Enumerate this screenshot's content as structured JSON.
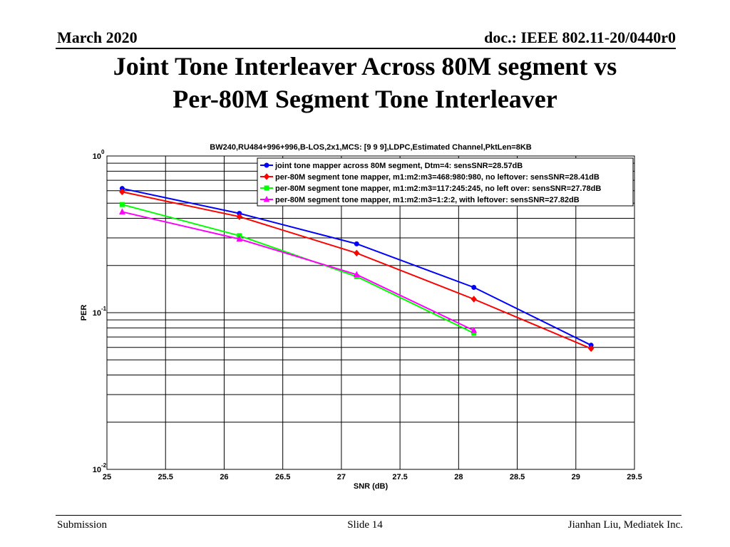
{
  "header": {
    "date": "March 2020",
    "doc_id": "doc.: IEEE 802.11-20/0440r0"
  },
  "title": {
    "line1": "Joint Tone Interleaver Across 80M segment vs",
    "line2": "Per-80M Segment Tone Interleaver"
  },
  "footer": {
    "left": "Submission",
    "center": "Slide 14",
    "right": "Jianhan Liu, Mediatek Inc."
  },
  "chart_data": {
    "type": "line",
    "title": "BW240,RU484+996+996,B-LOS,2x1,MCS: [9  9  9],LDPC,Estimated Channel,PktLen=8KB",
    "xlabel": "SNR (dB)",
    "ylabel": "PER",
    "xlim": [
      25,
      29.5
    ],
    "ylim": [
      0.01,
      1
    ],
    "yscale": "log",
    "grid": true,
    "legend_position": "top-right",
    "x_ticks": [
      25,
      25.5,
      26,
      26.5,
      27,
      27.5,
      28,
      28.5,
      29,
      29.5
    ],
    "x_tick_labels": [
      "25",
      "25.5",
      "26",
      "26.5",
      "27",
      "27.5",
      "28",
      "28.5",
      "29",
      "29.5"
    ],
    "y_ticks": [
      {
        "value": 1,
        "base": "10",
        "exp": "0"
      },
      {
        "value": 0.1,
        "base": "10",
        "exp": "-1"
      },
      {
        "value": 0.01,
        "base": "10",
        "exp": "-2"
      }
    ],
    "series": [
      {
        "name": "joint tone mapper across 80M segment, Dtm=4:   sensSNR=28.57dB",
        "color": "#0000ff",
        "marker": "circle",
        "x": [
          25.13,
          26.13,
          27.13,
          28.13,
          29.13
        ],
        "y": [
          0.62,
          0.43,
          0.275,
          0.145,
          0.062
        ]
      },
      {
        "name": "per-80M segment tone mapper, m1:m2:m3=468:980:980, no leftover:   sensSNR=28.41dB",
        "color": "#ff0000",
        "marker": "diamond",
        "x": [
          25.13,
          26.13,
          27.13,
          28.13,
          29.13
        ],
        "y": [
          0.59,
          0.41,
          0.24,
          0.122,
          0.059
        ]
      },
      {
        "name": "per-80M segment tone mapper, m1:m2:m3=117:245:245, no left over:   sensSNR=27.78dB",
        "color": "#00ff00",
        "marker": "square",
        "x": [
          25.13,
          26.13,
          27.13,
          28.13
        ],
        "y": [
          0.49,
          0.31,
          0.17,
          0.074
        ]
      },
      {
        "name": "per-80M segment tone mapper, m1:m2:m3=1:2:2, with leftover:   sensSNR=27.82dB",
        "color": "#ff00ff",
        "marker": "triangle",
        "x": [
          25.13,
          26.13,
          27.13,
          28.13
        ],
        "y": [
          0.44,
          0.295,
          0.175,
          0.077
        ]
      }
    ]
  }
}
